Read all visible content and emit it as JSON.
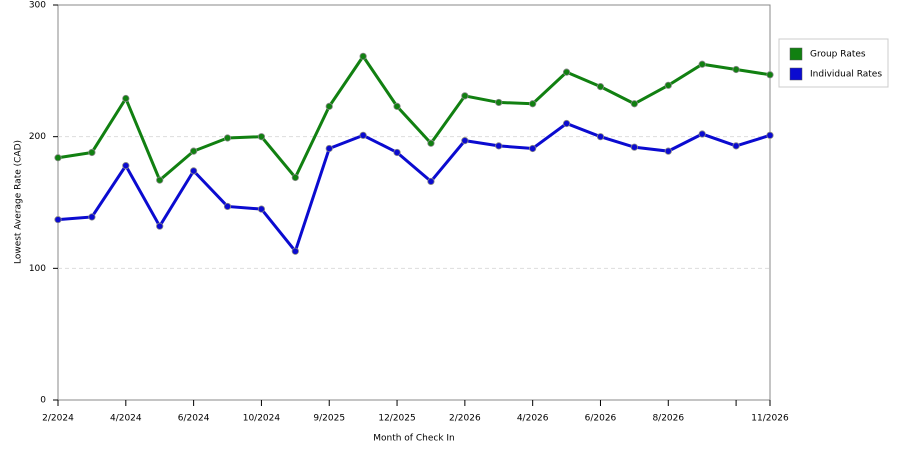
{
  "chart_data": {
    "type": "line",
    "x_label": "Month of Check In",
    "y_label": "Lowest Average Rate (CAD)",
    "categories": [
      "2/2024",
      null,
      "4/2024",
      null,
      "6/2024",
      null,
      "10/2024",
      null,
      "9/2025",
      null,
      "12/2025",
      null,
      "2/2026",
      null,
      "4/2026",
      null,
      "6/2026",
      null,
      "8/2026",
      null,
      null,
      "11/2026"
    ],
    "series": [
      {
        "name": "Group Rates",
        "color": "#118011",
        "values": [
          184,
          188,
          229,
          167,
          189,
          199,
          200,
          169,
          223,
          261,
          223,
          195,
          231,
          226,
          225,
          249,
          238,
          225,
          239,
          255,
          251,
          247
        ]
      },
      {
        "name": "Individual Rates",
        "color": "#0b0bd0",
        "values": [
          137,
          139,
          178,
          132,
          174,
          147,
          145,
          113,
          191,
          201,
          188,
          166,
          197,
          193,
          191,
          210,
          200,
          192,
          189,
          202,
          193,
          201
        ]
      }
    ],
    "ylim": [
      0,
      300
    ],
    "yticks": [
      0,
      100,
      200,
      300
    ],
    "grid": true,
    "legend": "right"
  }
}
